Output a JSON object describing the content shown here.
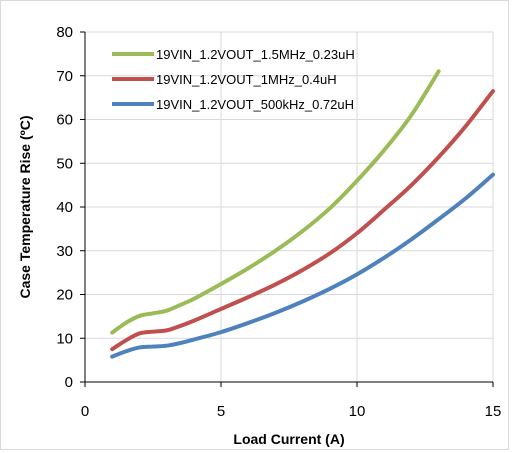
{
  "chart_data": {
    "type": "line",
    "xlabel": "Load Current (A)",
    "ylabel": "Case Temperature Rise (ºC)",
    "xlim": [
      0,
      15
    ],
    "ylim": [
      0,
      80
    ],
    "xticks": [
      0,
      5,
      10,
      15
    ],
    "yticks": [
      0,
      10,
      20,
      30,
      40,
      50,
      60,
      70,
      80
    ],
    "grid": true,
    "legend": "top-left",
    "series": [
      {
        "name": "19VIN_1.2VOUT_1.5MHz_0.23uH",
        "color": "#9BBB59",
        "x": [
          1,
          1.5,
          2,
          2.5,
          3,
          3.5,
          4,
          5,
          6,
          7,
          8,
          9,
          10,
          11,
          12,
          13
        ],
        "y": [
          11.3,
          13.5,
          15.1,
          15.7,
          16.3,
          17.6,
          19.0,
          22.4,
          26.0,
          30.0,
          34.5,
          39.7,
          46.0,
          53.0,
          61.0,
          71.0
        ]
      },
      {
        "name": "19VIN_1.2VOUT_1MHz_0.4uH",
        "color": "#C0504D",
        "x": [
          1,
          1.5,
          2,
          2.5,
          3,
          3.5,
          4,
          5,
          6,
          7,
          8,
          9,
          10,
          11,
          12,
          13,
          14,
          15
        ],
        "y": [
          7.5,
          9.5,
          11.1,
          11.5,
          11.8,
          12.8,
          14.0,
          16.7,
          19.4,
          22.3,
          25.6,
          29.4,
          34.0,
          39.4,
          45.0,
          51.4,
          58.5,
          66.5
        ]
      },
      {
        "name": "19VIN_1.2VOUT_500kHz_0.72uH",
        "color": "#4F81BD",
        "x": [
          1,
          1.5,
          2,
          2.5,
          3,
          3.5,
          4,
          5,
          6,
          7,
          8,
          9,
          10,
          11,
          12,
          13,
          14,
          15
        ],
        "y": [
          5.8,
          7.0,
          7.9,
          8.1,
          8.3,
          8.9,
          9.7,
          11.4,
          13.5,
          15.8,
          18.4,
          21.3,
          24.6,
          28.4,
          32.6,
          37.2,
          42.0,
          47.4
        ]
      }
    ]
  }
}
